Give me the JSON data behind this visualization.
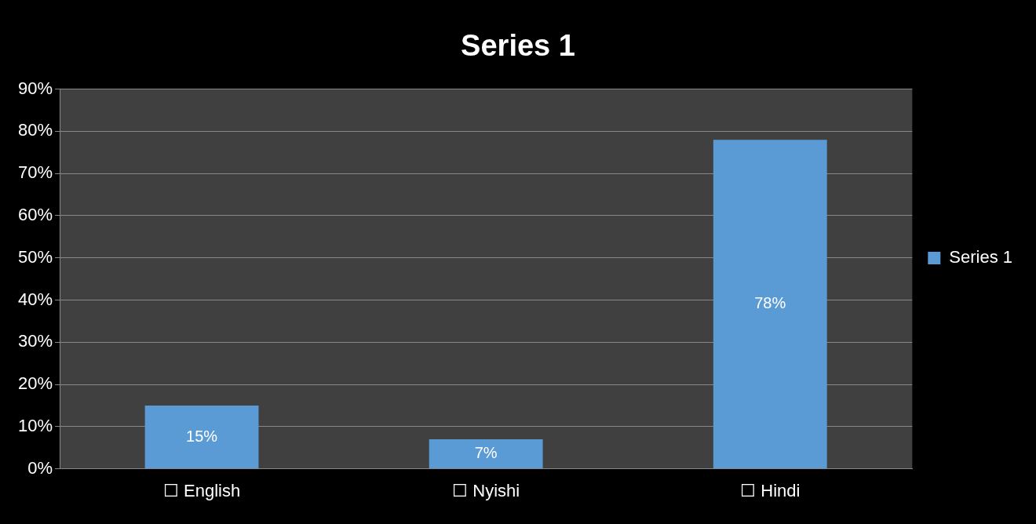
{
  "chart_data": {
    "type": "bar",
    "title": "Series 1",
    "categories": [
      "☐ English",
      "☐ Nyishi",
      "☐ Hindi"
    ],
    "series": [
      {
        "name": "Series 1",
        "color": "#5b9bd5",
        "values": [
          15,
          7,
          78
        ],
        "value_labels": [
          "15%",
          "7%",
          "78%"
        ]
      }
    ],
    "ylim": [
      0,
      90
    ],
    "yticks": [
      {
        "value": 0,
        "label": "0%"
      },
      {
        "value": 10,
        "label": "10%"
      },
      {
        "value": 20,
        "label": "20%"
      },
      {
        "value": 30,
        "label": "30%"
      },
      {
        "value": 40,
        "label": "40%"
      },
      {
        "value": 50,
        "label": "50%"
      },
      {
        "value": 60,
        "label": "60%"
      },
      {
        "value": 70,
        "label": "70%"
      },
      {
        "value": 80,
        "label": "80%"
      },
      {
        "value": 90,
        "label": "90%"
      }
    ],
    "grid": "y",
    "legend": "right"
  }
}
